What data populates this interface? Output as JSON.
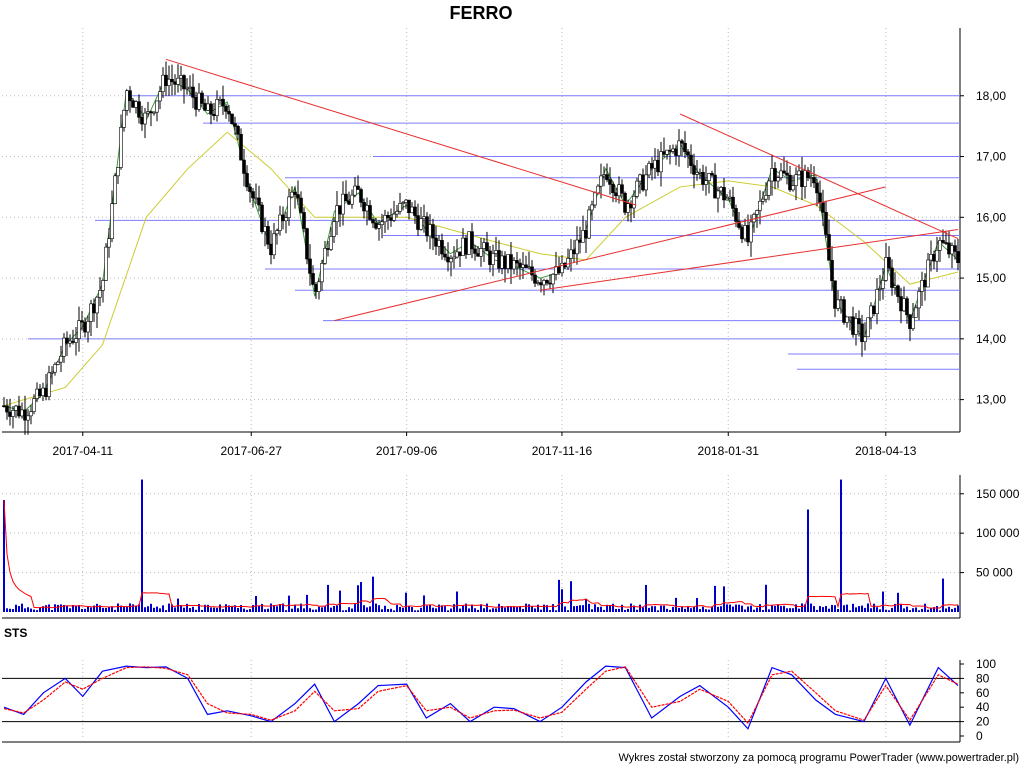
{
  "chart_data": [
    {
      "type": "candlestick",
      "title": "FERRO",
      "x_ticks": [
        "2017-04-11",
        "2017-06-27",
        "2017-09-06",
        "2017-11-16",
        "2018-01-31",
        "2018-04-13"
      ],
      "y_ticks": [
        "13,00",
        "14,00",
        "15,00",
        "16,00",
        "17,00",
        "18,00"
      ],
      "ylim": [
        12.5,
        19.0
      ],
      "grid": true,
      "series": [
        {
          "kind": "close",
          "color": "#000000",
          "x": [
            "2017-03-06",
            "2017-03-15",
            "2017-03-24",
            "2017-04-03",
            "2017-04-11",
            "2017-04-20",
            "2017-05-01",
            "2017-05-10",
            "2017-05-19",
            "2017-05-29",
            "2017-06-07",
            "2017-06-16",
            "2017-06-27",
            "2017-07-06",
            "2017-07-17",
            "2017-07-26",
            "2017-08-04",
            "2017-08-15",
            "2017-08-24",
            "2017-09-06",
            "2017-09-15",
            "2017-09-26",
            "2017-10-05",
            "2017-10-16",
            "2017-10-25",
            "2017-11-06",
            "2017-11-16",
            "2017-11-27",
            "2017-12-06",
            "2017-12-15",
            "2017-12-27",
            "2018-01-09",
            "2018-01-18",
            "2018-01-31",
            "2018-02-09",
            "2018-02-20",
            "2018-03-01",
            "2018-03-12",
            "2018-03-21",
            "2018-04-03",
            "2018-04-13",
            "2018-04-24",
            "2018-05-07",
            "2018-05-16"
          ],
          "y": [
            12.9,
            12.8,
            13.1,
            13.9,
            14.2,
            14.9,
            18.1,
            17.6,
            18.3,
            18.1,
            17.7,
            17.9,
            16.4,
            15.5,
            16.5,
            14.7,
            16.1,
            16.4,
            15.9,
            16.2,
            15.8,
            15.4,
            15.6,
            15.3,
            15.2,
            15.0,
            15.1,
            15.8,
            16.8,
            16.2,
            16.8,
            17.2,
            16.7,
            16.3,
            15.6,
            16.8,
            16.6,
            16.7,
            14.6,
            14.0,
            15.2,
            14.3,
            15.6,
            15.3
          ]
        },
        {
          "kind": "moving-average",
          "color": "#cccc33",
          "x": [
            "2017-03-06",
            "2017-04-03",
            "2017-04-20",
            "2017-05-10",
            "2017-05-29",
            "2017-06-16",
            "2017-07-06",
            "2017-07-26",
            "2017-08-15",
            "2017-09-06",
            "2017-09-26",
            "2017-10-16",
            "2017-11-06",
            "2017-11-27",
            "2017-12-15",
            "2018-01-09",
            "2018-01-31",
            "2018-02-20",
            "2018-03-12",
            "2018-04-03",
            "2018-04-24",
            "2018-05-16"
          ],
          "y": [
            12.9,
            13.2,
            13.9,
            16.0,
            16.8,
            17.4,
            16.8,
            16.0,
            16.0,
            16.0,
            15.8,
            15.6,
            15.4,
            15.3,
            16.0,
            16.5,
            16.6,
            16.5,
            16.2,
            15.6,
            14.9,
            15.1
          ]
        }
      ],
      "horizontal_levels": [
        18.0,
        17.55,
        17.0,
        16.65,
        15.95,
        15.7,
        15.15,
        14.8,
        14.3,
        14.0,
        13.75,
        13.5
      ],
      "trendlines": [
        {
          "from": [
            "2017-05-19",
            18.6
          ],
          "to": [
            "2017-12-20",
            16.2
          ]
        },
        {
          "from": [
            "2017-08-04",
            14.3
          ],
          "to": [
            "2018-04-13",
            16.5
          ]
        },
        {
          "from": [
            "2017-11-06",
            14.8
          ],
          "to": [
            "2018-05-16",
            15.8
          ]
        },
        {
          "from": [
            "2018-01-09",
            17.7
          ],
          "to": [
            "2018-05-16",
            15.65
          ]
        }
      ]
    },
    {
      "type": "bar",
      "name": "volume",
      "y_ticks": [
        "50 000",
        "100 000",
        "150 000"
      ],
      "ylim": [
        0,
        170000
      ],
      "spikes": [
        {
          "x": "2017-03-06",
          "value": 142000
        },
        {
          "x": "2017-05-08",
          "value": 168000
        },
        {
          "x": "2018-03-09",
          "value": 130000
        },
        {
          "x": "2018-03-23",
          "value": 168000
        }
      ],
      "average_color": "#ff0000"
    },
    {
      "type": "line",
      "name": "STS",
      "y_ticks": [
        "0",
        "20",
        "40",
        "60",
        "80",
        "100"
      ],
      "ylim": [
        0,
        100
      ],
      "reference_lines": [
        80,
        20
      ],
      "series": [
        {
          "color": "#0000ff",
          "x": [
            "2017-03-06",
            "2017-03-15",
            "2017-03-24",
            "2017-04-03",
            "2017-04-11",
            "2017-04-20",
            "2017-05-01",
            "2017-05-10",
            "2017-05-19",
            "2017-05-29",
            "2017-06-07",
            "2017-06-16",
            "2017-06-27",
            "2017-07-06",
            "2017-07-17",
            "2017-07-26",
            "2017-08-04",
            "2017-08-15",
            "2017-08-24",
            "2017-09-06",
            "2017-09-15",
            "2017-09-26",
            "2017-10-05",
            "2017-10-16",
            "2017-10-25",
            "2017-11-06",
            "2017-11-16",
            "2017-11-27",
            "2017-12-06",
            "2017-12-15",
            "2017-12-27",
            "2018-01-09",
            "2018-01-18",
            "2018-01-31",
            "2018-02-09",
            "2018-02-20",
            "2018-03-01",
            "2018-03-12",
            "2018-03-21",
            "2018-04-03",
            "2018-04-13",
            "2018-04-24",
            "2018-05-07",
            "2018-05-16"
          ],
          "y": [
            40,
            30,
            60,
            80,
            55,
            90,
            97,
            95,
            96,
            80,
            30,
            35,
            28,
            20,
            45,
            72,
            20,
            45,
            70,
            72,
            25,
            45,
            20,
            40,
            38,
            20,
            40,
            75,
            97,
            95,
            25,
            55,
            70,
            40,
            10,
            95,
            85,
            50,
            30,
            20,
            80,
            15,
            95,
            70
          ]
        },
        {
          "color": "#ff0000",
          "x": [
            "2017-03-06",
            "2017-03-15",
            "2017-03-24",
            "2017-04-03",
            "2017-04-11",
            "2017-04-20",
            "2017-05-01",
            "2017-05-10",
            "2017-05-19",
            "2017-05-29",
            "2017-06-07",
            "2017-06-16",
            "2017-06-27",
            "2017-07-06",
            "2017-07-17",
            "2017-07-26",
            "2017-08-04",
            "2017-08-15",
            "2017-08-24",
            "2017-09-06",
            "2017-09-15",
            "2017-09-26",
            "2017-10-05",
            "2017-10-16",
            "2017-10-25",
            "2017-11-06",
            "2017-11-16",
            "2017-11-27",
            "2017-12-06",
            "2017-12-15",
            "2017-12-27",
            "2018-01-09",
            "2018-01-18",
            "2018-01-31",
            "2018-02-09",
            "2018-02-20",
            "2018-03-01",
            "2018-03-12",
            "2018-03-21",
            "2018-04-03",
            "2018-04-13",
            "2018-04-24",
            "2018-05-07",
            "2018-05-16"
          ],
          "y": [
            38,
            32,
            50,
            75,
            65,
            80,
            95,
            96,
            94,
            85,
            45,
            32,
            30,
            22,
            35,
            62,
            35,
            38,
            62,
            70,
            35,
            40,
            25,
            35,
            36,
            25,
            33,
            65,
            90,
            96,
            40,
            48,
            65,
            48,
            18,
            85,
            90,
            60,
            35,
            22,
            70,
            22,
            85,
            72
          ]
        }
      ]
    }
  ],
  "footer": "Wykres został stworzony za pomocą programu PowerTrader (www.powertrader.pl)"
}
